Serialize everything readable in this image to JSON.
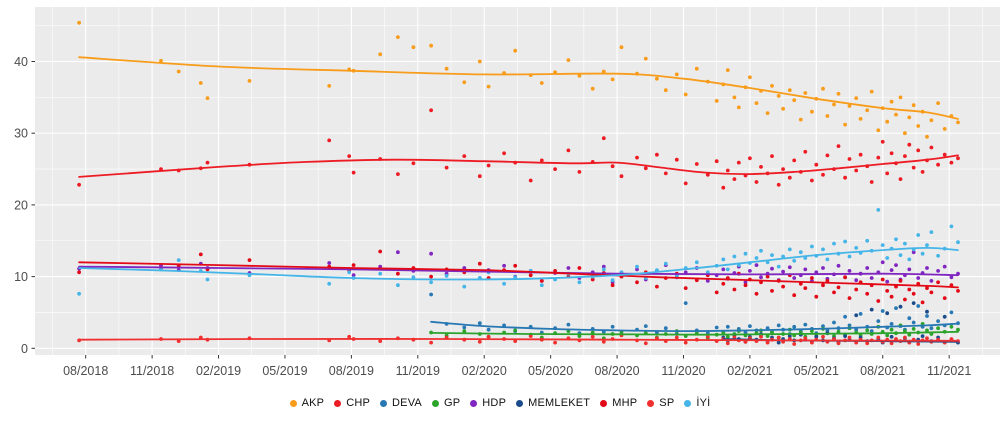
{
  "chart_data": {
    "type": "scatter",
    "title": "",
    "xlabel": "",
    "ylabel": "",
    "legend_position": "bottom",
    "grid": true,
    "x_axis": {
      "tick_labels": [
        "08/2018",
        "11/2018",
        "02/2019",
        "05/2019",
        "08/2019",
        "11/2019",
        "02/2020",
        "05/2020",
        "08/2020",
        "11/2020",
        "02/2021",
        "05/2021",
        "08/2021",
        "11/2021"
      ],
      "tick_months": [
        0,
        3,
        6,
        9,
        12,
        15,
        18,
        21,
        24,
        27,
        30,
        33,
        36,
        39
      ]
    },
    "y_axis": {
      "ticks": [
        0,
        10,
        20,
        30,
        40
      ],
      "minor_ticks": [
        5,
        15,
        25,
        35,
        45
      ]
    },
    "xlim_months": [
      -2.3,
      41.3
    ],
    "ylim": [
      -0.9,
      47.6
    ],
    "months": [
      -0.3,
      3.4,
      4.2,
      5.2,
      5.5,
      7.4,
      11.0,
      11.9,
      12.1,
      13.3,
      14.1,
      14.8,
      15.6,
      16.3,
      17.1,
      17.8,
      18.2,
      18.9,
      19.4,
      20.1,
      20.6,
      21.2,
      21.8,
      22.3,
      22.9,
      23.4,
      23.8,
      24.2,
      24.9,
      25.3,
      25.8,
      26.2,
      26.7,
      27.1,
      27.6,
      28.1,
      28.5,
      28.8,
      29.0,
      29.3,
      29.5,
      29.8,
      30.0,
      30.3,
      30.5,
      30.8,
      31.0,
      31.3,
      31.5,
      31.8,
      32.0,
      32.3,
      32.5,
      32.8,
      33.0,
      33.3,
      33.5,
      33.8,
      34.0,
      34.3,
      34.5,
      34.8,
      35.0,
      35.3,
      35.5,
      35.8,
      36.0,
      36.2,
      36.4,
      36.6,
      36.8,
      37.0,
      37.2,
      37.4,
      37.6,
      37.8,
      38.0,
      38.2,
      38.5,
      38.8,
      39.1,
      39.4
    ],
    "series": [
      {
        "label": "AKP",
        "color": "#F89C1B",
        "trend": [
          [
            -0.3,
            40.6
          ],
          [
            6,
            39.3
          ],
          [
            12,
            38.7
          ],
          [
            18,
            38.2
          ],
          [
            24,
            38.3
          ],
          [
            27,
            37.6
          ],
          [
            30,
            36.3
          ],
          [
            33,
            34.8
          ],
          [
            36,
            33.5
          ],
          [
            38,
            32.9
          ],
          [
            39.4,
            32.0
          ]
        ],
        "values": [
          45.4,
          40.1,
          38.6,
          37.0,
          34.9,
          37.3,
          36.6,
          38.9,
          38.7,
          41.0,
          43.4,
          42.0,
          42.2,
          39.0,
          37.1,
          40.0,
          36.5,
          38.4,
          41.5,
          38.1,
          37.0,
          38.5,
          40.2,
          38.0,
          36.2,
          38.6,
          37.5,
          42.0,
          38.3,
          40.4,
          37.6,
          36.0,
          38.2,
          35.4,
          39.0,
          37.2,
          34.5,
          36.8,
          38.8,
          35.0,
          33.6,
          36.4,
          37.8,
          34.2,
          35.9,
          32.8,
          36.6,
          35.2,
          33.4,
          36.0,
          34.6,
          31.9,
          35.6,
          33.0,
          34.8,
          36.2,
          32.4,
          34.0,
          35.5,
          31.2,
          33.8,
          34.9,
          32.0,
          33.2,
          35.8,
          30.4,
          33.5,
          31.6,
          34.4,
          32.6,
          35.0,
          30.0,
          32.2,
          33.9,
          31.0,
          33.0,
          29.5,
          31.8,
          34.2,
          30.6,
          32.4,
          31.5
        ]
      },
      {
        "label": "CHP",
        "color": "#ED1C24",
        "trend": [
          [
            -0.3,
            23.9
          ],
          [
            6,
            25.3
          ],
          [
            10,
            26.0
          ],
          [
            14,
            26.3
          ],
          [
            18,
            26.1
          ],
          [
            22,
            25.8
          ],
          [
            24,
            25.9
          ],
          [
            26,
            25.2
          ],
          [
            28,
            24.5
          ],
          [
            30,
            24.3
          ],
          [
            32,
            24.6
          ],
          [
            34,
            25.1
          ],
          [
            36,
            25.7
          ],
          [
            38,
            26.3
          ],
          [
            39.4,
            26.9
          ]
        ],
        "values": [
          22.8,
          25.0,
          24.8,
          25.1,
          25.9,
          25.6,
          29.0,
          26.8,
          24.5,
          26.4,
          24.3,
          25.8,
          33.2,
          25.2,
          26.8,
          24.0,
          25.5,
          27.2,
          25.9,
          23.4,
          26.2,
          25.0,
          27.6,
          24.6,
          26.0,
          29.3,
          25.4,
          24.0,
          26.6,
          25.1,
          27.0,
          24.4,
          26.3,
          23.0,
          25.7,
          24.2,
          26.1,
          22.4,
          24.8,
          23.6,
          25.9,
          24.1,
          26.5,
          23.2,
          25.3,
          24.4,
          26.8,
          22.8,
          25.0,
          23.8,
          26.2,
          24.6,
          27.4,
          23.4,
          25.6,
          24.2,
          26.9,
          25.0,
          28.2,
          23.8,
          26.4,
          24.8,
          27.0,
          25.4,
          23.2,
          26.6,
          28.8,
          24.4,
          27.2,
          25.8,
          23.6,
          26.8,
          28.4,
          25.2,
          27.6,
          24.6,
          26.2,
          28.0,
          25.6,
          27.0,
          25.9,
          26.5
        ]
      },
      {
        "label": "DEVA",
        "color": "#2878B4",
        "trend": [
          [
            15.6,
            3.7
          ],
          [
            18,
            3.1
          ],
          [
            21,
            2.7
          ],
          [
            24,
            2.5
          ],
          [
            27,
            2.4
          ],
          [
            30,
            2.5
          ],
          [
            33,
            2.7
          ],
          [
            36,
            3.0
          ],
          [
            38,
            3.2
          ],
          [
            39.4,
            3.45
          ]
        ],
        "values": [
          null,
          null,
          null,
          null,
          null,
          null,
          null,
          null,
          null,
          null,
          null,
          null,
          7.5,
          3.4,
          2.9,
          3.5,
          2.6,
          3.2,
          2.4,
          3.0,
          2.2,
          2.8,
          3.3,
          2.1,
          2.7,
          2.3,
          3.0,
          2.0,
          2.6,
          3.1,
          2.2,
          2.8,
          2.0,
          6.3,
          2.5,
          2.1,
          2.9,
          2.3,
          3.0,
          1.9,
          2.7,
          2.2,
          3.1,
          2.5,
          1.8,
          2.8,
          2.3,
          3.2,
          2.6,
          2.0,
          3.0,
          2.4,
          3.3,
          2.7,
          2.1,
          3.1,
          2.5,
          3.6,
          2.8,
          4.4,
          3.2,
          2.6,
          4.8,
          3.0,
          2.4,
          3.8,
          5.2,
          2.9,
          3.4,
          5.6,
          3.1,
          2.6,
          4.2,
          3.6,
          5.9,
          3.0,
          4.5,
          2.8,
          3.8,
          3.2,
          5.0,
          3.5
        ]
      },
      {
        "label": "GP",
        "color": "#2CA42C",
        "trend": [
          [
            15.6,
            2.15
          ],
          [
            20,
            2.0
          ],
          [
            24,
            1.95
          ],
          [
            28,
            1.9
          ],
          [
            32,
            2.0
          ],
          [
            36,
            2.1
          ],
          [
            39.4,
            2.3
          ]
        ],
        "values": [
          null,
          null,
          null,
          null,
          null,
          null,
          null,
          null,
          null,
          null,
          null,
          null,
          2.2,
          1.8,
          2.4,
          2.0,
          1.6,
          2.2,
          2.5,
          1.9,
          1.5,
          2.1,
          2.4,
          1.7,
          2.2,
          1.4,
          2.0,
          2.3,
          1.8,
          2.1,
          1.5,
          2.0,
          2.4,
          1.7,
          2.1,
          1.4,
          1.9,
          2.2,
          1.6,
          2.0,
          2.4,
          1.8,
          1.4,
          2.1,
          2.5,
          1.7,
          2.2,
          1.5,
          2.0,
          2.6,
          1.8,
          2.2,
          1.6,
          2.4,
          1.9,
          2.7,
          2.1,
          1.7,
          2.3,
          1.9,
          2.8,
          2.2,
          1.8,
          2.5,
          2.0,
          3.0,
          2.3,
          1.8,
          2.6,
          2.1,
          3.2,
          2.4,
          1.9,
          2.7,
          2.2,
          3.4,
          2.5,
          2.0,
          2.8,
          2.3,
          3.0,
          2.6
        ]
      },
      {
        "label": "HDP",
        "color": "#8126C0",
        "trend": [
          [
            -0.3,
            11.4
          ],
          [
            6,
            11.2
          ],
          [
            12,
            11.0
          ],
          [
            18,
            10.7
          ],
          [
            24,
            10.4
          ],
          [
            30,
            10.3
          ],
          [
            36,
            10.4
          ],
          [
            39.4,
            10.2
          ]
        ],
        "values": [
          11.1,
          11.6,
          10.9,
          11.8,
          11.2,
          10.5,
          11.9,
          11.0,
          10.2,
          11.4,
          13.4,
          10.8,
          13.2,
          10.4,
          11.2,
          9.8,
          10.9,
          11.5,
          10.0,
          10.8,
          9.4,
          10.5,
          11.2,
          9.8,
          10.6,
          11.4,
          9.2,
          10.4,
          11.0,
          9.6,
          10.8,
          11.6,
          9.9,
          10.6,
          11.2,
          9.4,
          10.2,
          11.0,
          9.7,
          10.5,
          11.4,
          9.2,
          10.8,
          11.6,
          9.9,
          10.4,
          11.1,
          9.5,
          10.7,
          11.3,
          9.8,
          10.2,
          11.0,
          9.4,
          10.6,
          11.2,
          9.7,
          10.3,
          11.5,
          9.9,
          10.8,
          9.5,
          10.4,
          11.2,
          9.8,
          10.6,
          12.0,
          9.3,
          10.9,
          11.6,
          9.6,
          10.2,
          11.0,
          13.4,
          9.8,
          10.5,
          11.2,
          9.4,
          10.8,
          11.4,
          9.9,
          10.4
        ]
      },
      {
        "label": "MEMLEKET",
        "color": "#1A4C8B",
        "trend": [
          [
            28.8,
            1.3
          ],
          [
            32,
            1.1
          ],
          [
            36,
            1.0
          ],
          [
            39.4,
            0.9
          ]
        ],
        "values": [
          null,
          null,
          null,
          null,
          null,
          null,
          null,
          null,
          null,
          null,
          null,
          null,
          null,
          null,
          null,
          null,
          null,
          null,
          null,
          null,
          null,
          null,
          null,
          null,
          null,
          null,
          null,
          null,
          null,
          null,
          null,
          null,
          null,
          null,
          null,
          null,
          null,
          1.5,
          1.1,
          1.8,
          1.3,
          0.9,
          1.6,
          1.2,
          2.0,
          1.0,
          1.5,
          0.8,
          1.3,
          1.7,
          1.1,
          1.9,
          1.2,
          0.9,
          1.6,
          1.1,
          2.1,
          1.4,
          0.8,
          1.7,
          1.2,
          4.6,
          1.5,
          1.0,
          5.4,
          1.3,
          0.8,
          4.9,
          1.6,
          1.1,
          5.8,
          1.4,
          0.9,
          6.3,
          1.2,
          1.7,
          5.1,
          1.0,
          1.5,
          4.4,
          1.2,
          0.8
        ]
      },
      {
        "label": "MHP",
        "color": "#E30A17",
        "trend": [
          [
            -0.3,
            12.0
          ],
          [
            6,
            11.6
          ],
          [
            12,
            11.2
          ],
          [
            18,
            10.9
          ],
          [
            22,
            10.4
          ],
          [
            26,
            9.9
          ],
          [
            30,
            9.5
          ],
          [
            34,
            9.1
          ],
          [
            38,
            8.7
          ],
          [
            39.4,
            8.5
          ]
        ],
        "values": [
          10.6,
          11.2,
          11.5,
          13.1,
          11.0,
          12.3,
          11.4,
          10.8,
          11.6,
          13.5,
          10.4,
          11.2,
          10.0,
          11.0,
          10.6,
          11.8,
          9.8,
          10.9,
          11.5,
          10.2,
          9.4,
          10.8,
          10.0,
          11.2,
          9.6,
          10.5,
          8.8,
          10.0,
          9.2,
          10.6,
          8.6,
          9.8,
          10.4,
          8.4,
          9.5,
          10.2,
          7.8,
          9.0,
          9.8,
          8.2,
          10.4,
          8.8,
          9.6,
          7.6,
          9.2,
          10.0,
          8.0,
          9.4,
          8.6,
          10.2,
          7.4,
          9.0,
          8.4,
          9.8,
          7.2,
          8.8,
          9.4,
          7.8,
          8.5,
          9.9,
          7.0,
          8.2,
          9.2,
          7.6,
          8.8,
          6.6,
          9.6,
          8.0,
          7.2,
          8.6,
          9.4,
          6.8,
          8.2,
          7.6,
          9.0,
          6.4,
          8.4,
          7.8,
          9.2,
          7.0,
          8.8,
          8.0
        ]
      },
      {
        "label": "SP",
        "color": "#F03030",
        "trend": [
          [
            -0.3,
            1.2
          ],
          [
            8,
            1.3
          ],
          [
            16,
            1.3
          ],
          [
            24,
            1.2
          ],
          [
            32,
            1.1
          ],
          [
            39.4,
            1.05
          ]
        ],
        "values": [
          1.1,
          1.3,
          1.0,
          1.5,
          1.2,
          1.4,
          1.1,
          1.6,
          1.3,
          1.0,
          1.4,
          1.2,
          0.8,
          1.5,
          1.2,
          0.9,
          1.6,
          1.3,
          1.0,
          1.7,
          1.2,
          0.8,
          1.4,
          1.1,
          1.6,
          0.9,
          1.3,
          1.8,
          1.1,
          0.7,
          1.4,
          1.0,
          1.5,
          0.8,
          1.2,
          1.6,
          1.0,
          1.3,
          0.7,
          1.5,
          1.1,
          0.9,
          1.4,
          1.0,
          1.6,
          0.8,
          1.2,
          1.5,
          0.9,
          1.3,
          0.6,
          1.1,
          1.4,
          0.8,
          1.2,
          1.6,
          0.9,
          1.3,
          0.7,
          1.1,
          1.5,
          0.8,
          1.2,
          0.7,
          1.1,
          1.5,
          0.9,
          1.2,
          0.7,
          1.3,
          1.0,
          1.5,
          0.8,
          1.2,
          0.6,
          1.1,
          1.4,
          0.9,
          1.2,
          0.8,
          1.3,
          1.0
        ]
      },
      {
        "label": "İYİ",
        "color": "#45B5E8",
        "trend": [
          [
            -0.3,
            11.2
          ],
          [
            4,
            10.8
          ],
          [
            8,
            10.3
          ],
          [
            12,
            9.8
          ],
          [
            16,
            9.6
          ],
          [
            20,
            9.7
          ],
          [
            24,
            10.2
          ],
          [
            27,
            11.0
          ],
          [
            30,
            12.0
          ],
          [
            33,
            13.0
          ],
          [
            36,
            13.7
          ],
          [
            38,
            14.0
          ],
          [
            39.4,
            13.7
          ]
        ],
        "values": [
          7.6,
          11.0,
          12.3,
          10.8,
          9.6,
          10.2,
          9.0,
          10.6,
          9.8,
          10.4,
          8.8,
          9.9,
          9.2,
          10.1,
          8.6,
          9.8,
          10.6,
          9.0,
          9.9,
          10.8,
          8.8,
          9.6,
          10.4,
          9.2,
          10.0,
          11.0,
          9.5,
          10.6,
          11.4,
          9.8,
          10.9,
          11.8,
          10.2,
          11.2,
          12.0,
          10.6,
          11.5,
          12.4,
          11.0,
          12.8,
          11.6,
          13.2,
          11.9,
          12.6,
          13.6,
          12.0,
          13.0,
          11.4,
          12.8,
          13.8,
          12.2,
          13.4,
          12.6,
          14.2,
          12.9,
          13.8,
          12.4,
          14.6,
          13.2,
          14.9,
          12.8,
          14.0,
          13.3,
          15.0,
          13.6,
          19.3,
          14.4,
          12.6,
          13.9,
          15.2,
          13.0,
          14.6,
          12.4,
          13.8,
          15.8,
          13.2,
          14.4,
          16.2,
          12.9,
          13.9,
          17.0,
          14.8
        ]
      }
    ]
  },
  "theme": {
    "background": "#FFFFFF",
    "panel_bg": "#EBEBEB",
    "grid_color": "#FFFFFF",
    "axis_text_color": "#4D4D4D",
    "tick_mark_color": "#333333",
    "legend_text_color": "#111111"
  }
}
